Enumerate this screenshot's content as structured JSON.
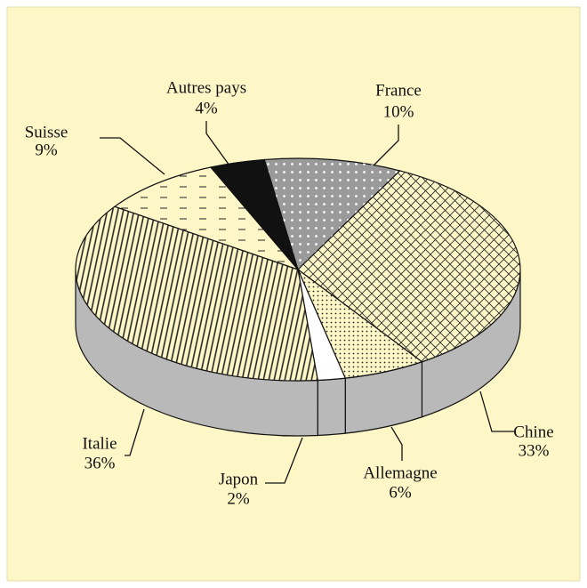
{
  "chart_data": {
    "type": "pie3d",
    "categories": [
      "France",
      "Chine",
      "Allemagne",
      "Japon",
      "Italie",
      "Suisse",
      "Autres pays"
    ],
    "values": [
      10,
      33,
      6,
      2,
      36,
      9,
      4
    ],
    "value_labels": [
      "10%",
      "33%",
      "6%",
      "2%",
      "36%",
      "9%",
      "4%"
    ],
    "colors": [
      "#9a9a9a",
      "#fdf7c8",
      "#fdf7c8",
      "#ffffff",
      "#fdf7c8",
      "#fdf7c8",
      "#111111"
    ]
  }
}
